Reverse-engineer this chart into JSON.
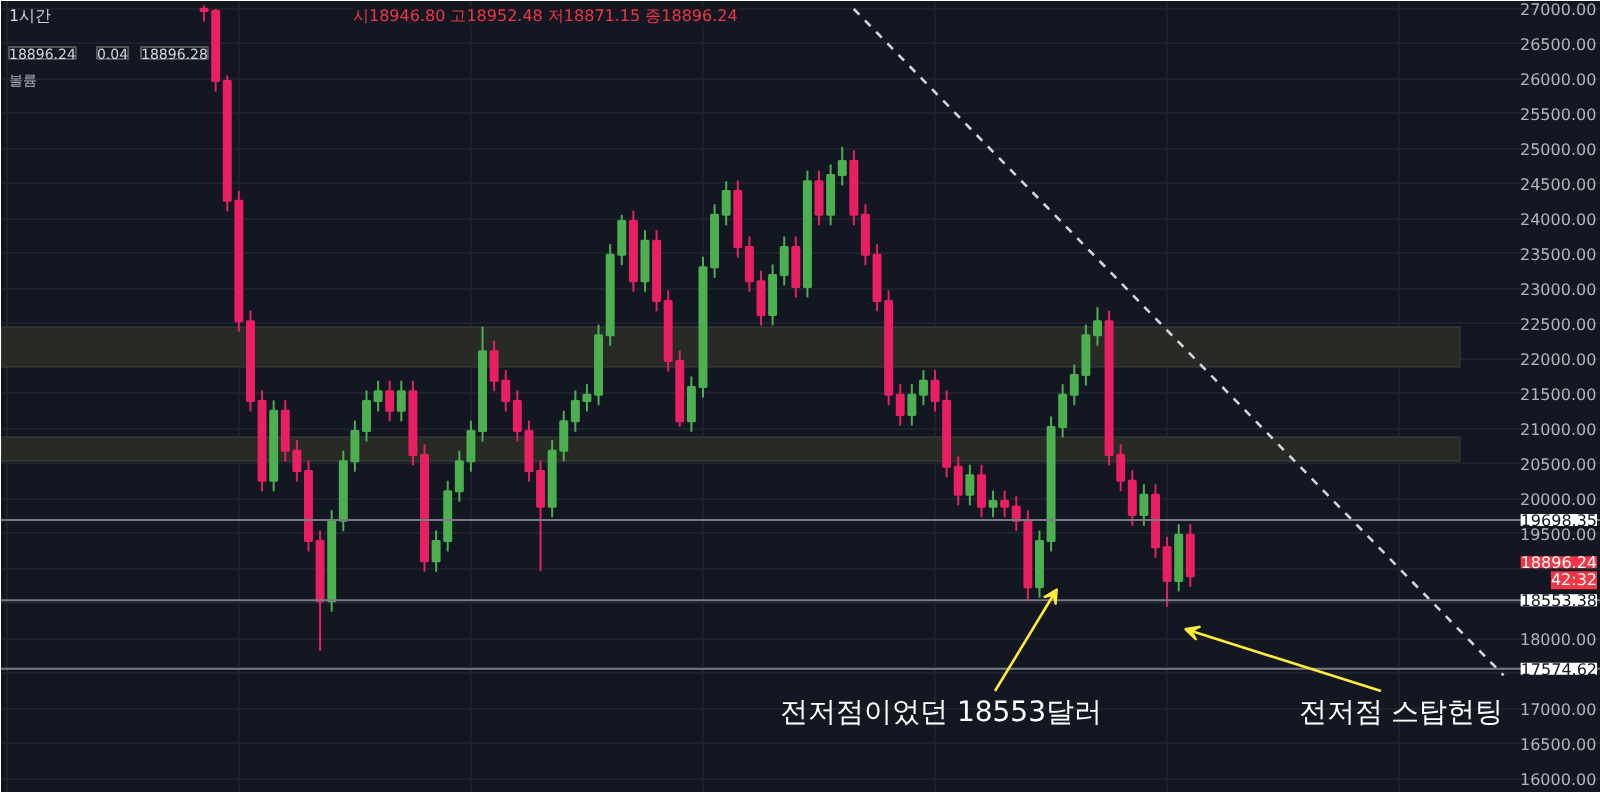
{
  "chart_data": {
    "type": "candlestick",
    "title": "1시간",
    "subtitle": "시18946.80 고18952.48 저18871.15 종18896.24",
    "categories": [
      null,
      null,
      null,
      null,
      null,
      null,
      null,
      null,
      null,
      null,
      null,
      null,
      null,
      null,
      null,
      null,
      null,
      null,
      null,
      null,
      null,
      null,
      null,
      null,
      null,
      null,
      null,
      null,
      null,
      null,
      null,
      null,
      null,
      null,
      null,
      null,
      null,
      null,
      null,
      null,
      null,
      null,
      null,
      null,
      null,
      null,
      null,
      null,
      null,
      null,
      null,
      null,
      null,
      null,
      null,
      null,
      null,
      null,
      null,
      null,
      null,
      null,
      null,
      null,
      null,
      null,
      null,
      null,
      null,
      null,
      null,
      null,
      null,
      null,
      null,
      null,
      null,
      null,
      null,
      null,
      null,
      null,
      null,
      null,
      null,
      null,
      null,
      null,
      null,
      null,
      null,
      null,
      null,
      null,
      null,
      null,
      null,
      null,
      null,
      null,
      null,
      null,
      null,
      null,
      null,
      null,
      null,
      null,
      null,
      null,
      null,
      null,
      null,
      null,
      null,
      null,
      null,
      null,
      null,
      null,
      null,
      null,
      null,
      null,
      null,
      null,
      null,
      null,
      null,
      null,
      null
    ],
    "ohlc": [
      null,
      null,
      null,
      null,
      null,
      null,
      null,
      null,
      null,
      null,
      null,
      null,
      null,
      null,
      null,
      null,
      null,
      [
        27000,
        27050,
        26820,
        26970
      ],
      [
        26970,
        27000,
        25820,
        25970
      ],
      [
        25970,
        26050,
        24110,
        24260
      ],
      [
        24260,
        24400,
        22390,
        22540
      ],
      [
        22540,
        22690,
        21250,
        21400
      ],
      [
        21400,
        21550,
        20110,
        20260
      ],
      [
        20260,
        21410,
        20110,
        21260
      ],
      [
        21260,
        21410,
        20540,
        20690
      ],
      [
        20690,
        20840,
        20250,
        20400
      ],
      [
        20400,
        20550,
        19250,
        19400
      ],
      [
        19400,
        19550,
        17830,
        18540
      ],
      [
        18540,
        19840,
        18390,
        19690
      ],
      [
        19690,
        20690,
        19540,
        20540
      ],
      [
        20540,
        21120,
        20390,
        20970
      ],
      [
        20970,
        21550,
        20820,
        21400
      ],
      [
        21400,
        21690,
        21250,
        21540
      ],
      [
        21540,
        21690,
        21110,
        21260
      ],
      [
        21260,
        21690,
        21110,
        21540
      ],
      [
        21540,
        21690,
        20480,
        20630
      ],
      [
        20630,
        20780,
        18960,
        19110
      ],
      [
        19110,
        19550,
        18960,
        19400
      ],
      [
        19400,
        20260,
        19250,
        20110
      ],
      [
        20110,
        20690,
        19960,
        20540
      ],
      [
        20540,
        21120,
        20390,
        20970
      ],
      [
        20970,
        22460,
        20820,
        22110
      ],
      [
        22110,
        22260,
        21540,
        21690
      ],
      [
        21690,
        21840,
        21250,
        21400
      ],
      [
        21400,
        21550,
        20820,
        20970
      ],
      [
        20970,
        21120,
        20250,
        20400
      ],
      [
        20400,
        20550,
        18970,
        19890
      ],
      [
        19890,
        20840,
        19740,
        20690
      ],
      [
        20690,
        21260,
        20540,
        21110
      ],
      [
        21110,
        21550,
        20960,
        21400
      ],
      [
        21400,
        21640,
        21250,
        21490
      ],
      [
        21490,
        22490,
        21340,
        22340
      ],
      [
        22340,
        23640,
        22190,
        23490
      ],
      [
        23490,
        24060,
        23340,
        23970
      ],
      [
        23970,
        24120,
        22960,
        23110
      ],
      [
        23110,
        23840,
        22960,
        23690
      ],
      [
        23690,
        23840,
        22680,
        22830
      ],
      [
        22830,
        22980,
        21820,
        21970
      ],
      [
        21970,
        22120,
        21030,
        21110
      ],
      [
        21110,
        21750,
        20960,
        21600
      ],
      [
        21600,
        23460,
        21450,
        23310
      ],
      [
        23310,
        24210,
        23160,
        24060
      ],
      [
        24060,
        24540,
        23910,
        24400
      ],
      [
        24400,
        24550,
        23450,
        23600
      ],
      [
        23600,
        23750,
        22960,
        23110
      ],
      [
        23110,
        23260,
        22480,
        22630
      ],
      [
        22630,
        23350,
        22480,
        23200
      ],
      [
        23200,
        23750,
        23050,
        23600
      ],
      [
        23600,
        23750,
        22880,
        23030
      ],
      [
        23030,
        24690,
        22880,
        24540
      ],
      [
        24540,
        24690,
        23910,
        24060
      ],
      [
        24060,
        24780,
        23910,
        24630
      ],
      [
        24630,
        25030,
        24480,
        24830
      ],
      [
        24830,
        24980,
        23910,
        24060
      ],
      [
        24060,
        24210,
        23340,
        23490
      ],
      [
        23490,
        23640,
        22680,
        22830
      ],
      [
        22830,
        22980,
        21340,
        21490
      ],
      [
        21490,
        21640,
        21050,
        21200
      ],
      [
        21200,
        21640,
        21050,
        21490
      ],
      [
        21490,
        21840,
        21340,
        21690
      ],
      [
        21690,
        21840,
        21250,
        21400
      ],
      [
        21400,
        21550,
        20310,
        20460
      ],
      [
        20460,
        20610,
        19910,
        20060
      ],
      [
        20060,
        20490,
        19910,
        20340
      ],
      [
        20340,
        20490,
        19740,
        19890
      ],
      [
        19890,
        20120,
        19740,
        19970
      ],
      [
        19970,
        20120,
        19740,
        19890
      ],
      [
        19890,
        20040,
        19540,
        19690
      ],
      [
        19690,
        19840,
        18570,
        18740
      ],
      [
        18740,
        19550,
        18590,
        19400
      ],
      [
        19400,
        21180,
        19250,
        21030
      ],
      [
        21030,
        21640,
        20880,
        21490
      ],
      [
        21490,
        21920,
        21340,
        21770
      ],
      [
        21770,
        22490,
        21620,
        22340
      ],
      [
        22340,
        22740,
        22190,
        22540
      ],
      [
        22540,
        22690,
        20480,
        20630
      ],
      [
        20630,
        20780,
        20110,
        20260
      ],
      [
        20260,
        20410,
        19620,
        19770
      ],
      [
        19770,
        20210,
        19620,
        20060
      ],
      [
        20060,
        20210,
        19160,
        19310
      ],
      [
        19310,
        19460,
        18460,
        18830
      ],
      [
        18830,
        19640,
        18680,
        19490
      ],
      [
        19490,
        19640,
        18746,
        18896.24
      ],
      null,
      null,
      null,
      null,
      null,
      null,
      null,
      null,
      null,
      null,
      null,
      null,
      null,
      null,
      null,
      null,
      null,
      null,
      null,
      null,
      null,
      null,
      null,
      null,
      null,
      null,
      null,
      null
    ],
    "series": [
      {
        "type": "line",
        "color": "#d1d4dc",
        "line_style": "dashed",
        "values": [
          null,
          null,
          null,
          null,
          null,
          null,
          null,
          null,
          null,
          null,
          null,
          null,
          null,
          null,
          null,
          null,
          null,
          null,
          null,
          null,
          null,
          null,
          null,
          null,
          null,
          null,
          null,
          null,
          null,
          null,
          null,
          null,
          null,
          null,
          null,
          null,
          null,
          null,
          null,
          null,
          null,
          null,
          null,
          null,
          null,
          null,
          null,
          null,
          null,
          null,
          null,
          null,
          null,
          null,
          null,
          null,
          null,
          null,
          null,
          null,
          null,
          null,
          null,
          null,
          null,
          null,
          null,
          null,
          null,
          null,
          null,
          null,
          null,
          27000,
          26830,
          26660,
          26490,
          26320,
          26150,
          25980,
          25810,
          25640,
          25470,
          25300,
          25130,
          24960,
          24790,
          24620,
          24450,
          24280,
          24110,
          23940,
          23770,
          23600,
          23430,
          23260,
          23090,
          22920,
          22750,
          22580,
          22410,
          22240,
          22070,
          21900,
          21730,
          21560,
          21390,
          21220,
          21050,
          20880,
          20710,
          20540,
          20370,
          20200,
          20030,
          19860,
          19690,
          19520,
          19350,
          19180,
          19010,
          18840,
          18670,
          18500,
          18330,
          18160,
          17990,
          17820,
          17650,
          17480,
          null
        ]
      }
    ],
    "ylim": [
      15800,
      27114
    ],
    "yticks": [
      {
        "value": 16000,
        "label": "16000.00"
      },
      {
        "value": 16500,
        "label": "16500.00"
      },
      {
        "value": 17000,
        "label": "17000.00"
      },
      {
        "value": 17500,
        "label": null
      },
      {
        "value": 18000,
        "label": "18000.00"
      },
      {
        "value": 18500,
        "label": null
      },
      {
        "value": 19000,
        "label": null
      },
      {
        "value": 19500,
        "label": "19500.00"
      },
      {
        "value": 20000,
        "label": "20000.00"
      },
      {
        "value": 20500,
        "label": "20500.00"
      },
      {
        "value": 21000,
        "label": "21000.00"
      },
      {
        "value": 21500,
        "label": "21500.00"
      },
      {
        "value": 22000,
        "label": "22000.00"
      },
      {
        "value": 22500,
        "label": "22500.00"
      },
      {
        "value": 23000,
        "label": "23000.00"
      },
      {
        "value": 23500,
        "label": "23500.00"
      },
      {
        "value": 24000,
        "label": "24000.00"
      },
      {
        "value": 24500,
        "label": "24500.00"
      },
      {
        "value": 25000,
        "label": "25000.00"
      },
      {
        "value": 25500,
        "label": "25500.00"
      },
      {
        "value": 26000,
        "label": "26000.00"
      },
      {
        "value": 26500,
        "label": "26500.00"
      },
      {
        "value": 27000,
        "label": "27000.00"
      }
    ],
    "grid": true,
    "ref_lines": [
      {
        "axis": "y",
        "value": 19698.35,
        "label": "19698.35",
        "color": "#787b86"
      },
      {
        "axis": "y",
        "value": 18553.38,
        "label": "18553.38",
        "color": "#787b86"
      },
      {
        "axis": "y",
        "value": 17574.62,
        "label": "17574.62",
        "color": "#787b86"
      }
    ],
    "bands": [
      {
        "axis": "y",
        "from": 21886,
        "to": 22457,
        "label": null,
        "color": "#2a2c26"
      },
      {
        "axis": "y",
        "from": 20543,
        "to": 20886,
        "label": null,
        "color": "#2a2c26"
      }
    ],
    "annotations": [
      "전저점이었던 18553달러",
      "전저점 스탑헌팅",
      "18896.24",
      "42:32",
      "18896.24",
      "0.04",
      "18896.28",
      "볼륨"
    ]
  }
}
